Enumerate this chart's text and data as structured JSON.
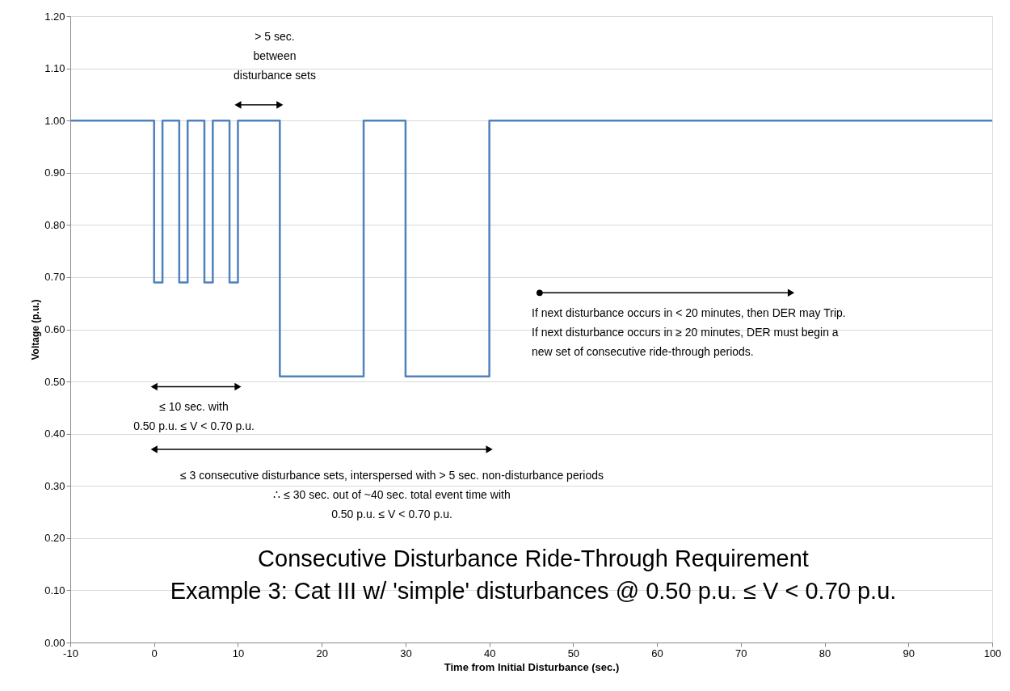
{
  "chart_data": {
    "type": "step",
    "title": "Consecutive Disturbance Ride-Through Requirement",
    "subtitle": "Example 3: Cat III w/ 'simple' disturbances @ 0.50 p.u. ≤ V < 0.70 p.u.",
    "xlabel": "Time from Initial Disturbance (sec.)",
    "ylabel": "Voltage (p.u.)",
    "xlim": [
      -10,
      100
    ],
    "xticks": [
      -10,
      0,
      10,
      20,
      30,
      40,
      50,
      60,
      70,
      80,
      90,
      100
    ],
    "ylim": [
      0,
      1.2
    ],
    "yticks": [
      {
        "value": 0,
        "label": "0.00"
      },
      {
        "value": 0.1,
        "label": "0.10"
      },
      {
        "value": 0.2,
        "label": "0.20"
      },
      {
        "value": 0.3,
        "label": "0.30"
      },
      {
        "value": 0.4,
        "label": "0.40"
      },
      {
        "value": 0.5,
        "label": "0.50"
      },
      {
        "value": 0.6,
        "label": "0.60"
      },
      {
        "value": 0.7,
        "label": "0.70"
      },
      {
        "value": 0.8,
        "label": "0.80"
      },
      {
        "value": 0.9,
        "label": "0.90"
      },
      {
        "value": 1.0,
        "label": "1.00"
      },
      {
        "value": 1.1,
        "label": "1.10"
      },
      {
        "value": 1.2,
        "label": "1.20"
      }
    ],
    "grid": "y",
    "marker": "none",
    "line_style": "solid",
    "series": [
      {
        "color": "#4f81bd",
        "x": [
          -10,
          0,
          1,
          3,
          4,
          6,
          7,
          9,
          10,
          15,
          25,
          30,
          40,
          100
        ],
        "values": [
          1.0,
          0.69,
          1.0,
          0.69,
          1.0,
          0.69,
          1.0,
          0.69,
          1.0,
          0.51,
          1.0,
          0.51,
          1.0,
          1.0
        ]
      },
      {
        "type": "line",
        "color": "#000000",
        "marker": [
          "triangle",
          "triangle"
        ],
        "x": [
          10,
          15
        ],
        "values": [
          1.03,
          1.03
        ]
      },
      {
        "type": "line",
        "color": "#000000",
        "marker": [
          "triangle",
          "triangle"
        ],
        "x": [
          0,
          10
        ],
        "values": [
          0.49,
          0.49
        ]
      },
      {
        "type": "line",
        "color": "#000000",
        "marker": [
          "triangle",
          "triangle"
        ],
        "x": [
          0,
          40
        ],
        "values": [
          0.37,
          0.37
        ]
      },
      {
        "type": "line",
        "color": "#000000",
        "marker": [
          "circle",
          "triangle"
        ],
        "x": [
          46,
          76
        ],
        "values": [
          0.67,
          0.67
        ]
      }
    ],
    "annotations": [
      "> 5 sec.\nbetween\ndisturbance sets",
      "If next disturbance occurs in < 20 minutes, then DER may Trip.\nIf next disturbance occurs in ≥ 20 minutes, DER must begin a\nnew set of consecutive ride-through periods.",
      "≤ 10 sec. with\n0.50 p.u. ≤ V < 0.70 p.u.",
      "≤ 3 consecutive disturbance sets, interspersed with > 5 sec. non-disturbance periods\n∴ ≤ 30 sec. out of ~40 sec. total event time with\n0.50 p.u. ≤ V < 0.70 p.u."
    ]
  }
}
